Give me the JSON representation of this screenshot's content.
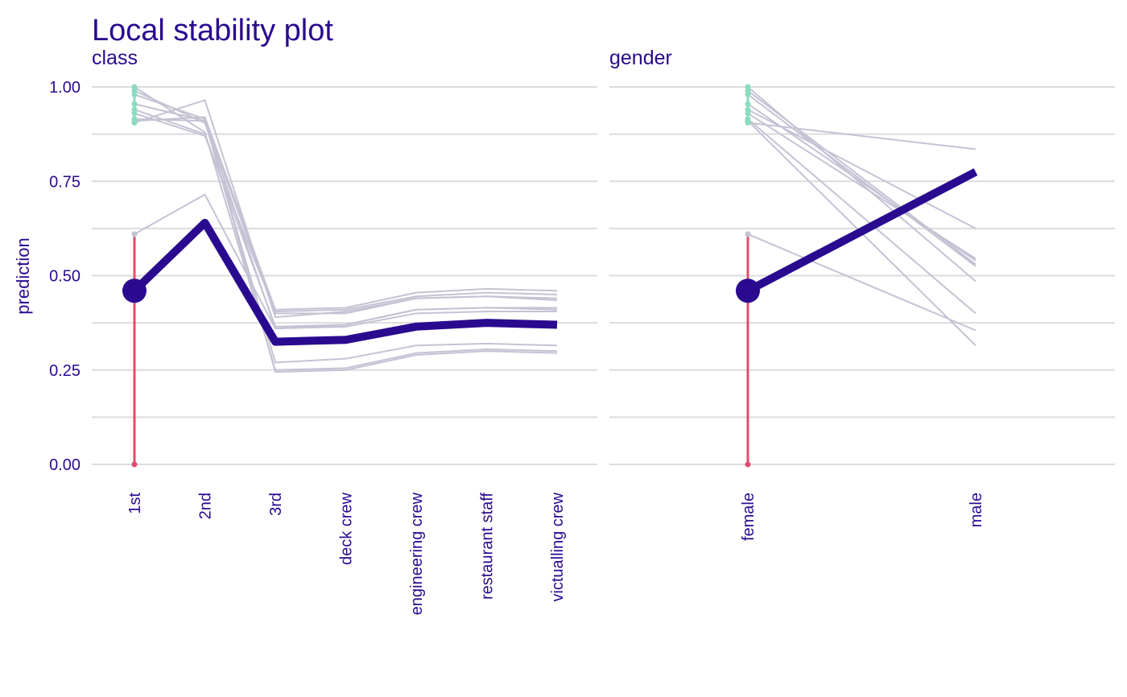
{
  "chart_data": {
    "type": "line",
    "title": "Local stability plot",
    "ylabel": "prediction",
    "ylim": [
      0,
      1
    ],
    "y_ticks": [
      "0.00",
      "0.25",
      "0.50",
      "0.75",
      "1.00"
    ],
    "grid": true,
    "colors": {
      "main": "#2a0a8f",
      "profiles": "#c4c3d4",
      "negative_residual": "#e34d6b",
      "positive_residual": "#8bdcbe",
      "grid": "#dcdce0"
    },
    "observation_prediction": 0.46,
    "panels": [
      {
        "variable": "class",
        "categories": [
          "1st",
          "2nd",
          "3rd",
          "deck crew",
          "engineering crew",
          "restaurant staff",
          "victualling crew"
        ],
        "observation_category": "1st",
        "main_profile": [
          0.46,
          0.64,
          0.325,
          0.33,
          0.365,
          0.375,
          0.37
        ],
        "neighbor_profiles": [
          [
            0.61,
            0.715,
            0.36,
            0.365,
            0.4,
            0.405,
            0.405
          ],
          [
            0.905,
            0.965,
            0.39,
            0.405,
            0.44,
            0.445,
            0.435
          ],
          [
            0.91,
            0.92,
            0.41,
            0.415,
            0.455,
            0.465,
            0.46
          ],
          [
            0.915,
            0.91,
            0.4,
            0.4,
            0.44,
            0.445,
            0.44
          ],
          [
            0.94,
            0.875,
            0.365,
            0.37,
            0.41,
            0.415,
            0.415
          ],
          [
            0.955,
            0.91,
            0.27,
            0.28,
            0.315,
            0.32,
            0.315
          ],
          [
            0.98,
            0.915,
            0.245,
            0.25,
            0.29,
            0.3,
            0.295
          ],
          [
            1.0,
            0.88,
            0.25,
            0.255,
            0.295,
            0.305,
            0.3
          ],
          [
            0.99,
            0.905,
            0.36,
            0.37,
            0.41,
            0.415,
            0.41
          ],
          [
            0.93,
            0.87,
            0.405,
            0.41,
            0.445,
            0.455,
            0.45
          ]
        ],
        "residuals": [
          {
            "from": 0.46,
            "to": 0.61,
            "sign": "negative"
          },
          {
            "from": 0.46,
            "to": 0.0,
            "sign": "negative"
          },
          {
            "from": 0.905,
            "to": 1.0,
            "sign": "positive"
          },
          {
            "from": 0.91,
            "to": 0.94,
            "sign": "positive"
          }
        ]
      },
      {
        "variable": "gender",
        "categories": [
          "female",
          "male"
        ],
        "observation_category": "female",
        "main_profile": [
          0.46,
          0.775
        ],
        "neighbor_profiles": [
          [
            0.61,
            0.355
          ],
          [
            0.905,
            0.835
          ],
          [
            0.91,
            0.315
          ],
          [
            0.915,
            0.4
          ],
          [
            0.94,
            0.625
          ],
          [
            0.955,
            0.54
          ],
          [
            0.98,
            0.525
          ],
          [
            1.0,
            0.485
          ],
          [
            0.99,
            0.53
          ],
          [
            0.93,
            0.545
          ]
        ],
        "residuals": [
          {
            "from": 0.46,
            "to": 0.61,
            "sign": "negative"
          },
          {
            "from": 0.46,
            "to": 0.0,
            "sign": "negative"
          },
          {
            "from": 0.905,
            "to": 1.0,
            "sign": "positive"
          },
          {
            "from": 0.91,
            "to": 0.94,
            "sign": "positive"
          }
        ]
      }
    ]
  }
}
